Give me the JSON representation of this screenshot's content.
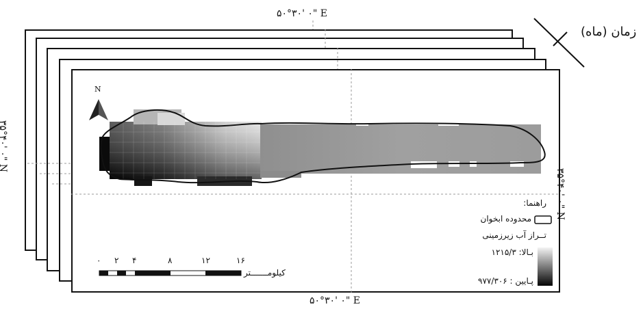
{
  "time_axis_label": "زمان (ماه)",
  "coordinates": {
    "top_longitude": "۵۰°۳۰' ۰\" E",
    "bottom_longitude": "۵۰°۳۰' ۰\" E",
    "left_latitude": "۳۵°۴۰' ۰\" N",
    "right_latitude": "۳۵°۴۰' ۰\" N"
  },
  "north_arrow": {
    "label": "N"
  },
  "legend": {
    "title": "راهنما:",
    "boundary_label": "محدوده ابخوان",
    "groundwater_title": "تــراز آب زیرزمینی",
    "high_label": "بـالا: ۱۲۱۵/۳",
    "low_label": "پـایین : ۹۷۷/۳۰۶"
  },
  "scale_bar": {
    "ticks": [
      "۰",
      "۲",
      "۴",
      "۸",
      "۱۲",
      "۱۶"
    ],
    "tick_values": [
      0,
      2,
      4,
      8,
      12,
      16
    ],
    "unit": "کیلومـــــــتر"
  },
  "colors": {
    "frame": "#111111",
    "high": "#f2f2f2",
    "low": "#050505",
    "mid": "#9a9a9a"
  }
}
